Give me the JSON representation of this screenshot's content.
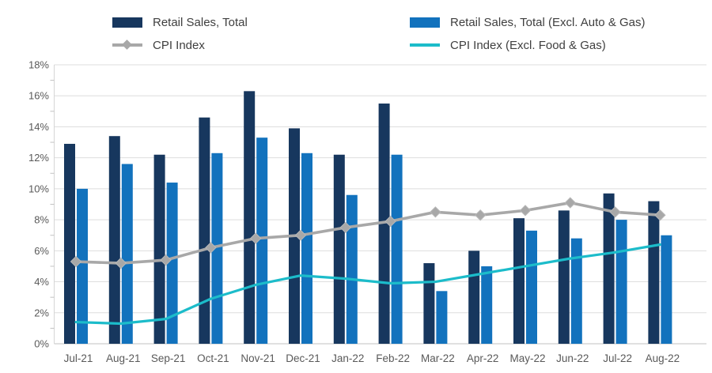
{
  "chart_data": {
    "type": "bar",
    "title": "",
    "xlabel": "",
    "ylabel": "",
    "ylim": [
      0,
      18
    ],
    "ytick_step": 2,
    "yticks": [
      "0%",
      "2%",
      "4%",
      "6%",
      "8%",
      "10%",
      "12%",
      "14%",
      "16%",
      "18%"
    ],
    "grid": true,
    "legend_position": "top",
    "categories": [
      "Jul-21",
      "Aug-21",
      "Sep-21",
      "Oct-21",
      "Nov-21",
      "Dec-21",
      "Jan-22",
      "Feb-22",
      "Mar-22",
      "Apr-22",
      "May-22",
      "Jun-22",
      "Jul-22",
      "Aug-22"
    ],
    "series": [
      {
        "name": "Retail Sales, Total",
        "kind": "bar",
        "color": "#17375e",
        "values": [
          12.9,
          13.4,
          12.2,
          14.6,
          16.3,
          13.9,
          12.2,
          15.5,
          5.2,
          6.0,
          8.1,
          8.6,
          9.7,
          9.2
        ]
      },
      {
        "name": "Retail Sales, Total (Excl. Auto & Gas)",
        "kind": "bar",
        "color": "#1272bd",
        "values": [
          10.0,
          11.6,
          10.4,
          12.3,
          13.3,
          12.3,
          9.6,
          12.2,
          3.4,
          5.0,
          7.3,
          6.8,
          8.0,
          7.0
        ]
      },
      {
        "name": "CPI Index",
        "kind": "line",
        "marker": "diamond",
        "color": "#a8a8a8",
        "values": [
          5.3,
          5.2,
          5.4,
          6.2,
          6.8,
          7.0,
          7.5,
          7.9,
          8.5,
          8.3,
          8.6,
          9.1,
          8.5,
          8.3
        ]
      },
      {
        "name": "CPI Index (Excl. Food & Gas)",
        "kind": "line",
        "marker": "none",
        "color": "#1cbcca",
        "values": [
          1.4,
          1.3,
          1.6,
          2.9,
          3.8,
          4.4,
          4.2,
          3.9,
          4.0,
          4.5,
          5.0,
          5.5,
          5.9,
          6.4
        ]
      }
    ],
    "colors": {
      "grid_line": "#dedede",
      "baseline": "#c2c2c2",
      "axis_line": "#d6d6d6",
      "tick_mark": "#c2c2c2",
      "axis_text": "#595959",
      "legend_text": "#3f3f3f",
      "background": "#ffffff"
    }
  }
}
